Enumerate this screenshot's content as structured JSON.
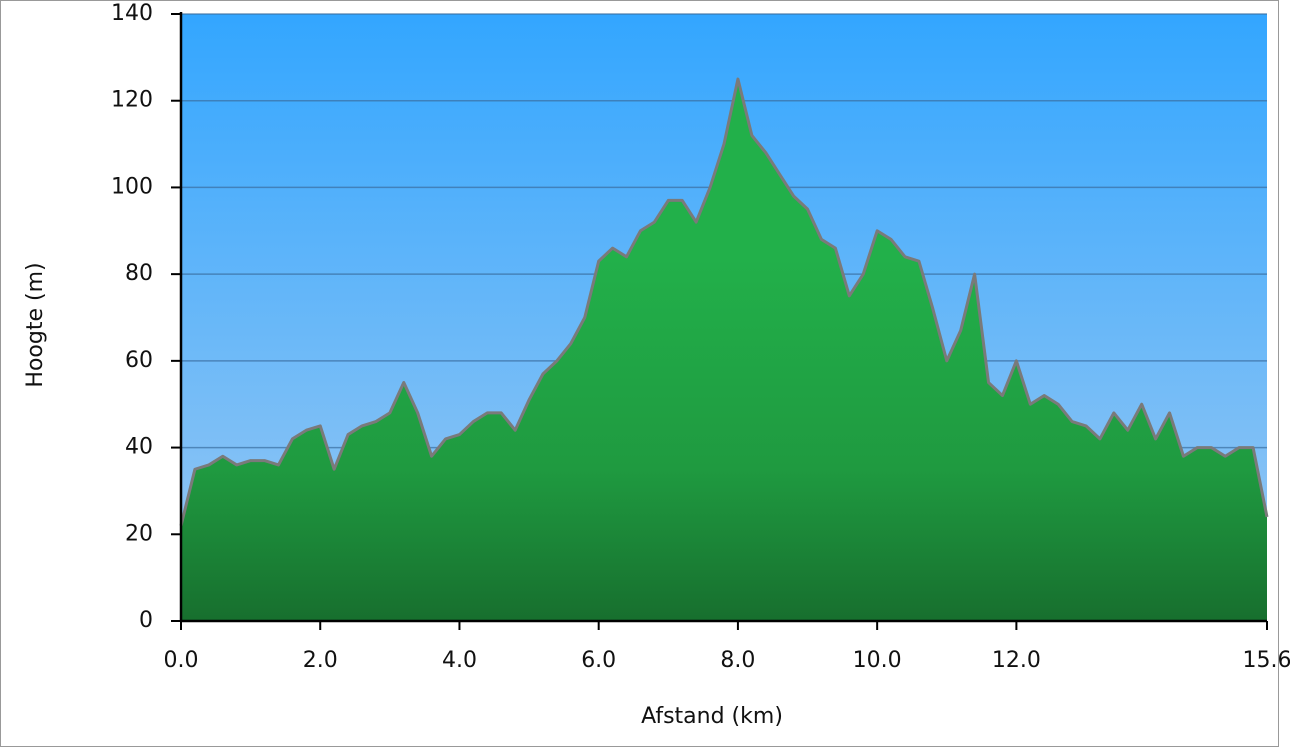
{
  "chart_data": {
    "type": "area",
    "x_label": "Afstand (km)",
    "y_label": "Hoogte (m)",
    "x": [
      0.0,
      0.2,
      0.4,
      0.6,
      0.8,
      1.0,
      1.2,
      1.4,
      1.6,
      1.8,
      2.0,
      2.2,
      2.4,
      2.6,
      2.8,
      3.0,
      3.2,
      3.4,
      3.6,
      3.8,
      4.0,
      4.2,
      4.4,
      4.6,
      4.8,
      5.0,
      5.2,
      5.4,
      5.6,
      5.8,
      6.0,
      6.2,
      6.4,
      6.6,
      6.8,
      7.0,
      7.2,
      7.4,
      7.6,
      7.8,
      8.0,
      8.2,
      8.4,
      8.6,
      8.8,
      9.0,
      9.2,
      9.4,
      9.6,
      9.8,
      10.0,
      10.2,
      10.4,
      10.6,
      10.8,
      11.0,
      11.2,
      11.4,
      11.6,
      11.8,
      12.0,
      12.2,
      12.4,
      12.6,
      12.8,
      13.0,
      13.2,
      13.4,
      13.6,
      13.8,
      14.0,
      14.2,
      14.4,
      14.6,
      14.8,
      15.0,
      15.2,
      15.4,
      15.6
    ],
    "series": [
      {
        "name": "Hoogte",
        "color": "#22a244",
        "values": [
          22,
          35,
          36,
          38,
          36,
          37,
          37,
          36,
          42,
          44,
          45,
          35,
          43,
          45,
          46,
          48,
          55,
          48,
          38,
          42,
          43,
          46,
          48,
          48,
          44,
          51,
          57,
          60,
          64,
          70,
          83,
          86,
          84,
          90,
          92,
          97,
          97,
          92,
          100,
          110,
          125,
          112,
          108,
          103,
          98,
          95,
          88,
          86,
          75,
          80,
          90,
          88,
          84,
          83,
          72,
          60,
          67,
          80,
          55,
          52,
          60,
          50,
          52,
          50,
          46,
          45,
          42,
          48,
          44,
          50,
          42,
          48,
          38,
          40,
          40,
          38,
          40,
          40,
          24
        ]
      }
    ],
    "xlim": [
      0,
      15.6
    ],
    "xticks": [
      {
        "value": 0,
        "label": "0.0"
      },
      {
        "value": 2,
        "label": "2.0"
      },
      {
        "value": 4,
        "label": "4.0"
      },
      {
        "value": 6,
        "label": "6.0"
      },
      {
        "value": 8,
        "label": "8.0"
      },
      {
        "value": 10,
        "label": "10.0"
      },
      {
        "value": 12,
        "label": "12.0"
      },
      {
        "value": 15.6,
        "label": "15.6"
      }
    ],
    "ylim": [
      0,
      140
    ],
    "yticks": [
      0,
      20,
      40,
      60,
      80,
      100,
      120,
      140
    ],
    "grid": true
  }
}
